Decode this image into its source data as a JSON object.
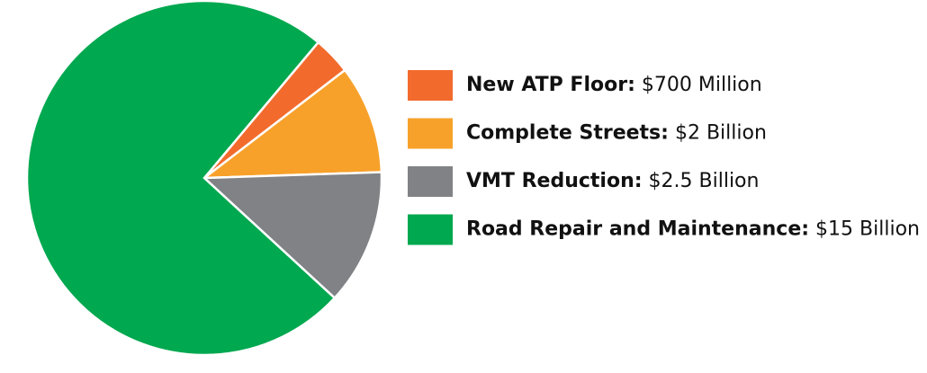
{
  "chart_data": {
    "type": "pie",
    "categories": [
      "New ATP Floor:",
      "Complete Streets:",
      "VMT Reduction:",
      "Road Repair and Maintenance:"
    ],
    "values": [
      0.7,
      2,
      2.5,
      15
    ],
    "value_labels": [
      "$700 Million",
      "$2 Billion",
      "$2.5 Billion",
      "$15 Billion"
    ],
    "colors": [
      "#f26b2d",
      "#f7a12b",
      "#808285",
      "#00a84f"
    ],
    "legend": "right"
  }
}
